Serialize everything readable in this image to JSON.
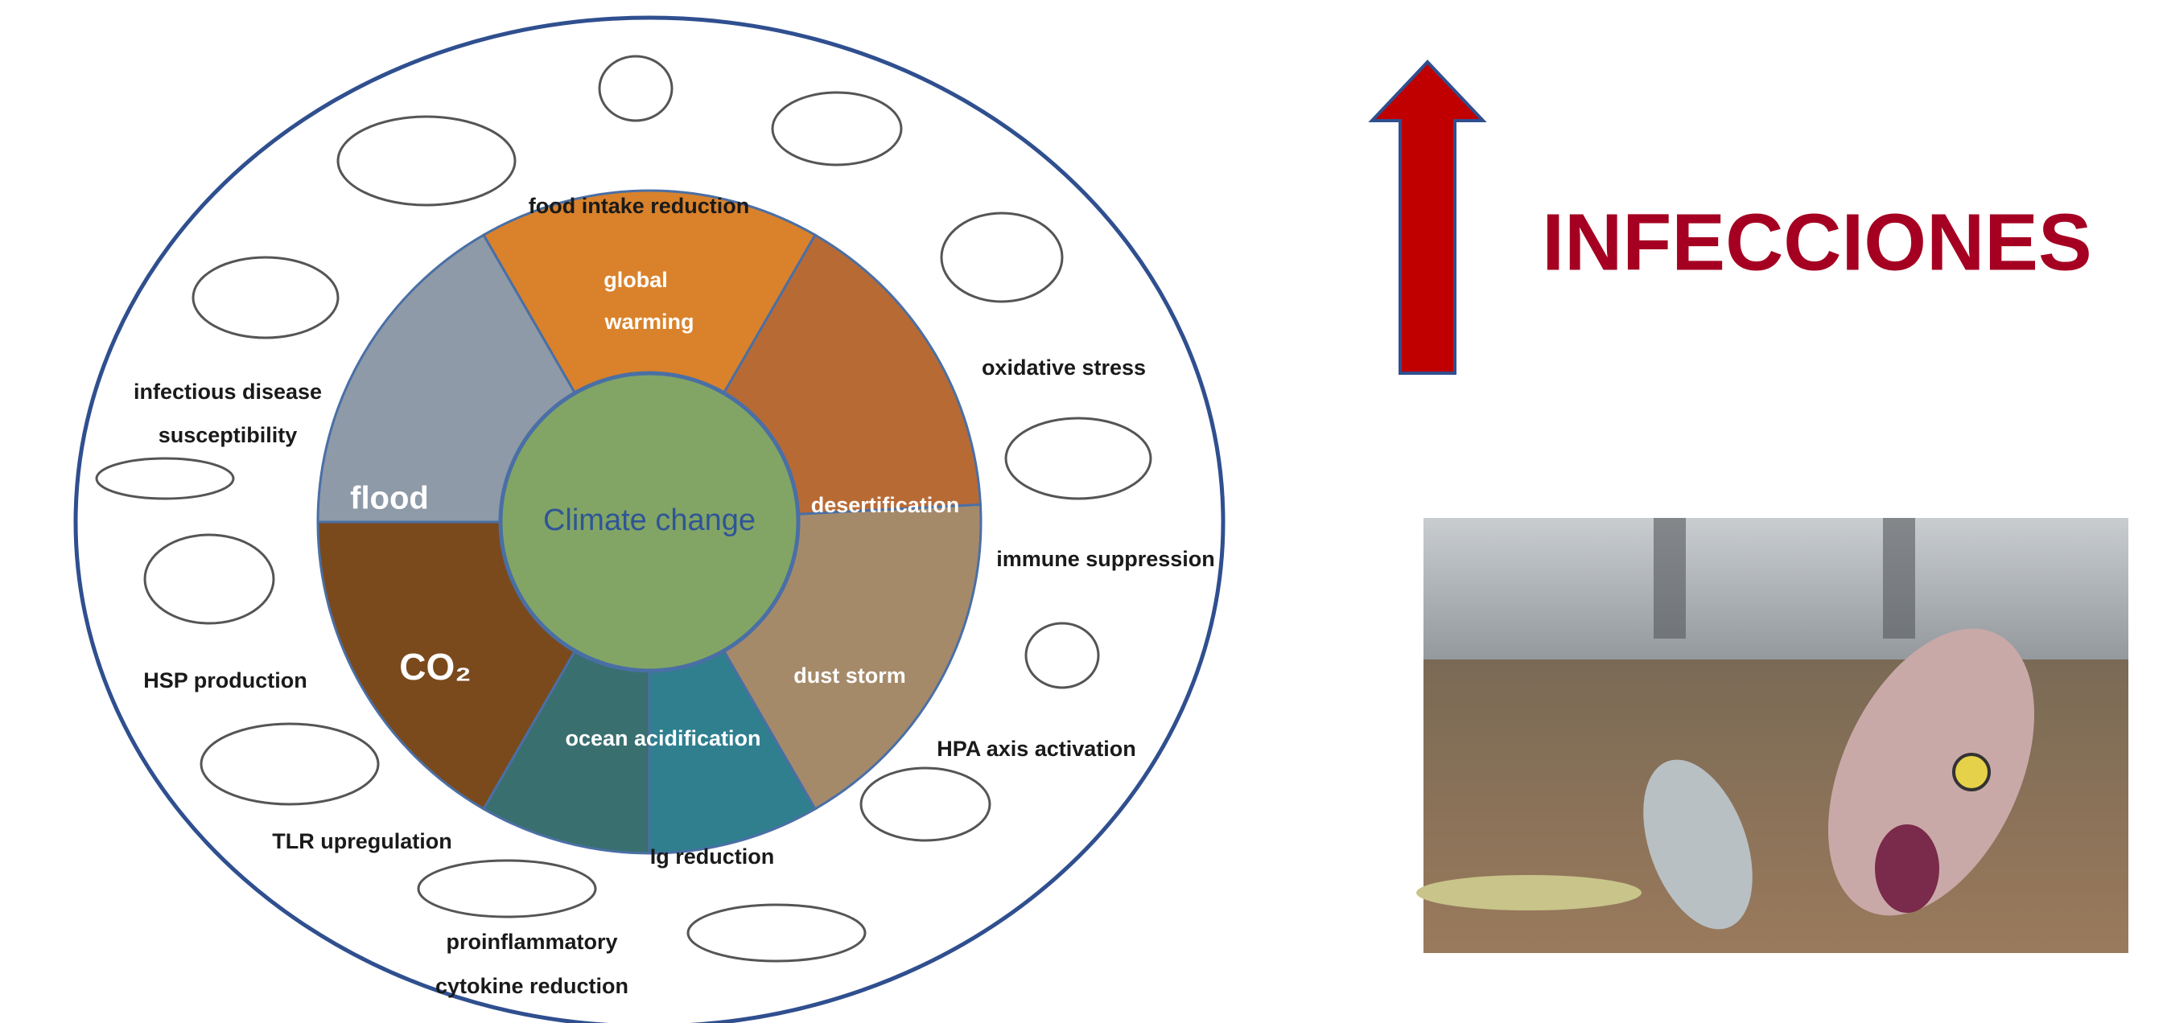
{
  "diagram": {
    "center": "Climate change",
    "causes": [
      {
        "lines": [
          "global",
          "warming"
        ]
      },
      {
        "lines": [
          "desertification"
        ]
      },
      {
        "lines": [
          "dust storm"
        ]
      },
      {
        "lines": [
          "ocean acidification"
        ]
      },
      {
        "lines": [
          "CO₂"
        ]
      },
      {
        "lines": [
          "flood"
        ]
      }
    ],
    "effects": [
      {
        "lines": [
          "food intake reduction"
        ]
      },
      {
        "lines": [
          "oxidative stress"
        ]
      },
      {
        "lines": [
          "immune suppression"
        ]
      },
      {
        "lines": [
          "HPA axis activation"
        ]
      },
      {
        "lines": [
          "Ig reduction"
        ]
      },
      {
        "lines": [
          "proinflammatory",
          "cytokine reduction"
        ]
      },
      {
        "lines": [
          "TLR upregulation"
        ]
      },
      {
        "lines": [
          "HSP production"
        ]
      },
      {
        "lines": [
          "infectious disease",
          "susceptibility"
        ]
      }
    ]
  },
  "arrow_label": "INFECCIONES"
}
